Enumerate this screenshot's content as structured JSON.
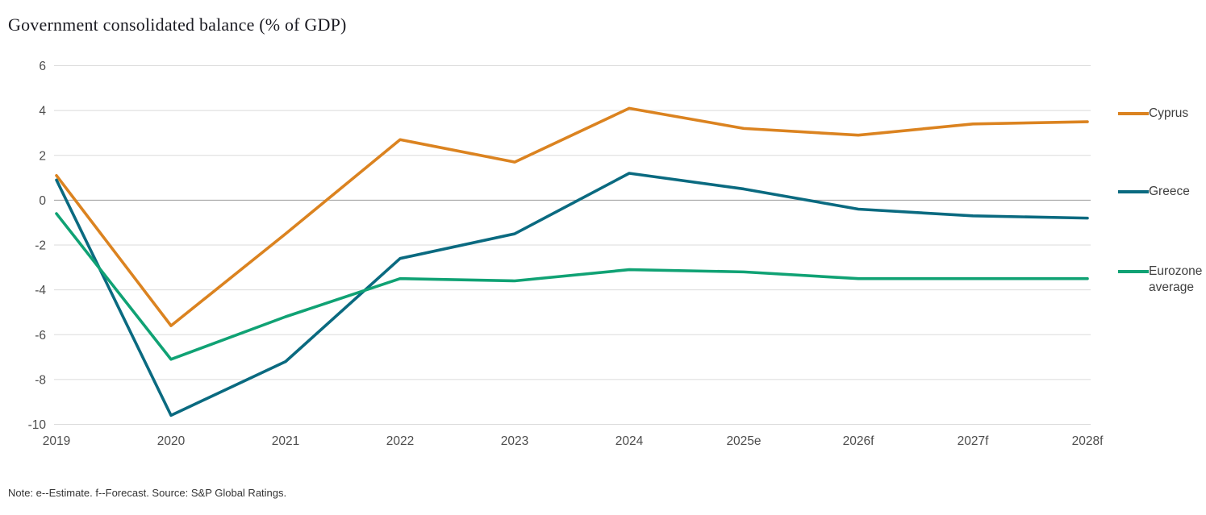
{
  "title": "Government consolidated balance (% of GDP)",
  "note": "Note: e--Estimate. f--Forecast. Source: S&P Global Ratings.",
  "chart_data": {
    "type": "line",
    "title": "Government consolidated balance (% of GDP)",
    "categories": [
      "2019",
      "2020",
      "2021",
      "2022",
      "2023",
      "2024",
      "2025e",
      "2026f",
      "2027f",
      "2028f"
    ],
    "series": [
      {
        "name": "Cyprus",
        "color": "#DB8320",
        "values": [
          1.1,
          -5.6,
          -1.5,
          2.7,
          1.7,
          4.1,
          3.2,
          2.9,
          3.4,
          3.5
        ]
      },
      {
        "name": "Greece",
        "color": "#0A6A80",
        "values": [
          0.9,
          -9.6,
          -7.2,
          -2.6,
          -1.5,
          1.2,
          0.5,
          -0.4,
          -0.7,
          -0.8
        ]
      },
      {
        "name": "Eurozone average",
        "color": "#10A274",
        "values": [
          -0.6,
          -7.1,
          -5.2,
          -3.5,
          -3.6,
          -3.1,
          -3.2,
          -3.5,
          -3.5,
          -3.5
        ]
      }
    ],
    "xlabel": "",
    "ylabel": "",
    "ylim": [
      -10,
      6
    ],
    "y_ticks": [
      6,
      4,
      2,
      0,
      -2,
      -4,
      -6,
      -8,
      -10
    ],
    "grid": true,
    "legend_position": "right",
    "colors": {
      "grid": "#DBDBDB",
      "zero_line": "#9C9C9C",
      "axis_text": "#4d4d4d",
      "title_text": "#1b1b22",
      "note_text": "#333333",
      "background": "#FFFFFF"
    }
  }
}
